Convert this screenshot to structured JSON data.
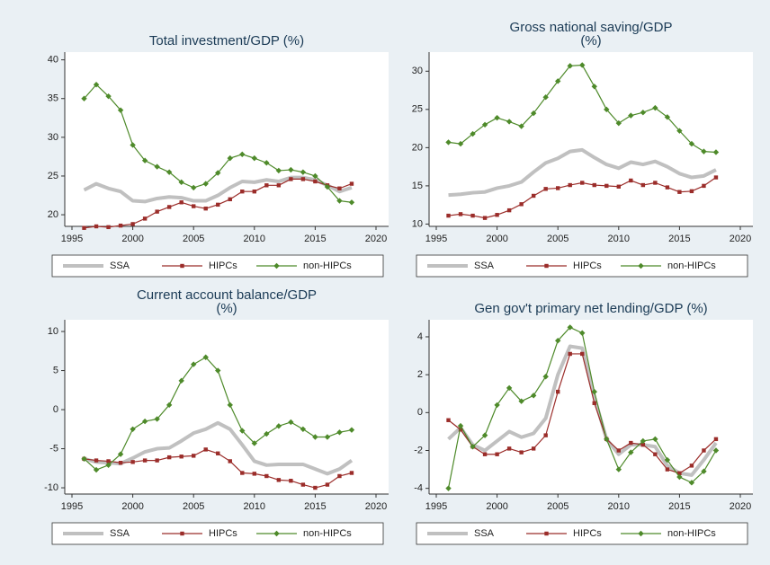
{
  "chart_data": [
    {
      "type": "line",
      "title": [
        "Total investment/GDP (%)"
      ],
      "x": [
        1996,
        1997,
        1998,
        1999,
        2000,
        2001,
        2002,
        2003,
        2004,
        2005,
        2006,
        2007,
        2008,
        2009,
        2010,
        2011,
        2012,
        2013,
        2014,
        2015,
        2016,
        2017,
        2018
      ],
      "xlim": [
        1995,
        2020
      ],
      "xticks": [
        1995,
        2000,
        2005,
        2010,
        2015,
        2020
      ],
      "ylim": [
        18.5,
        41
      ],
      "yticks": [
        20,
        25,
        30,
        35,
        40
      ],
      "grid": false,
      "legend": "bottom",
      "series": [
        {
          "name": "SSA",
          "color": "#c0c0c0",
          "values": [
            23.2,
            24,
            23.4,
            23,
            21.8,
            21.7,
            22.1,
            22.3,
            22.2,
            21.8,
            21.8,
            22.5,
            23.5,
            24.3,
            24.2,
            24.5,
            24.3,
            24.8,
            24.8,
            24.5,
            23.8,
            23,
            23.5
          ]
        },
        {
          "name": "HIPCs",
          "color": "#9b2d2a",
          "values": [
            18.3,
            18.5,
            18.4,
            18.6,
            18.8,
            19.5,
            20.4,
            21,
            21.6,
            21.1,
            20.8,
            21.3,
            22,
            23,
            23,
            23.8,
            23.8,
            24.6,
            24.6,
            24.3,
            23.8,
            23.4,
            24
          ]
        },
        {
          "name": "non-HIPCs",
          "color": "#4e8a2a",
          "values": [
            35,
            36.8,
            35.3,
            33.5,
            29,
            27,
            26.2,
            25.5,
            24.2,
            23.5,
            24,
            25.4,
            27.3,
            27.8,
            27.3,
            26.7,
            25.7,
            25.8,
            25.5,
            25,
            23.6,
            21.8,
            21.6
          ]
        }
      ]
    },
    {
      "type": "line",
      "title": [
        "Gross national saving/GDP",
        "(%)"
      ],
      "x": [
        1996,
        1997,
        1998,
        1999,
        2000,
        2001,
        2002,
        2003,
        2004,
        2005,
        2006,
        2007,
        2008,
        2009,
        2010,
        2011,
        2012,
        2013,
        2014,
        2015,
        2016,
        2017,
        2018
      ],
      "xlim": [
        1995,
        2020
      ],
      "xticks": [
        1995,
        2000,
        2005,
        2010,
        2015,
        2020
      ],
      "ylim": [
        9.7,
        32.5
      ],
      "yticks": [
        10,
        15,
        20,
        25,
        30
      ],
      "grid": false,
      "legend": "bottom",
      "series": [
        {
          "name": "SSA",
          "color": "#c0c0c0",
          "values": [
            13.8,
            13.9,
            14.1,
            14.2,
            14.7,
            15,
            15.5,
            16.8,
            18,
            18.6,
            19.5,
            19.7,
            18.7,
            17.8,
            17.3,
            18.1,
            17.8,
            18.2,
            17.5,
            16.6,
            16.1,
            16.3,
            17.1
          ]
        },
        {
          "name": "HIPCs",
          "color": "#9b2d2a",
          "values": [
            11.1,
            11.3,
            11.1,
            10.8,
            11.2,
            11.8,
            12.6,
            13.7,
            14.6,
            14.7,
            15.1,
            15.4,
            15.1,
            15,
            14.9,
            15.7,
            15.1,
            15.4,
            14.8,
            14.2,
            14.3,
            15,
            16.1
          ]
        },
        {
          "name": "non-HIPCs",
          "color": "#4e8a2a",
          "values": [
            20.7,
            20.5,
            21.8,
            23,
            23.9,
            23.4,
            22.8,
            24.5,
            26.6,
            28.7,
            30.7,
            30.8,
            28,
            25,
            23.2,
            24.2,
            24.6,
            25.2,
            24,
            22.2,
            20.5,
            19.5,
            19.4
          ]
        }
      ]
    },
    {
      "type": "line",
      "title": [
        "Current account balance/GDP",
        "(%)"
      ],
      "x": [
        1996,
        1997,
        1998,
        1999,
        2000,
        2001,
        2002,
        2003,
        2004,
        2005,
        2006,
        2007,
        2008,
        2009,
        2010,
        2011,
        2012,
        2013,
        2014,
        2015,
        2016,
        2017,
        2018
      ],
      "xlim": [
        1995,
        2020
      ],
      "xticks": [
        1995,
        2000,
        2005,
        2010,
        2015,
        2020
      ],
      "ylim": [
        -10.8,
        11.5
      ],
      "yticks": [
        -10,
        -5,
        0,
        5,
        10
      ],
      "grid": false,
      "legend": "bottom",
      "series": [
        {
          "name": "SSA",
          "color": "#c0c0c0",
          "values": [
            -6.3,
            -6.7,
            -6.8,
            -6.9,
            -6.2,
            -5.4,
            -5,
            -4.9,
            -4,
            -3,
            -2.5,
            -1.7,
            -2.5,
            -4.5,
            -6.6,
            -7.1,
            -7,
            -7,
            -7,
            -7.6,
            -8.2,
            -7.6,
            -6.5
          ]
        },
        {
          "name": "HIPCs",
          "color": "#9b2d2a",
          "values": [
            -6.3,
            -6.5,
            -6.6,
            -6.8,
            -6.7,
            -6.5,
            -6.5,
            -6.1,
            -6,
            -5.9,
            -5.1,
            -5.6,
            -6.6,
            -8.1,
            -8.2,
            -8.5,
            -9,
            -9.1,
            -9.6,
            -10,
            -9.6,
            -8.5,
            -8.1
          ]
        },
        {
          "name": "non-HIPCs",
          "color": "#4e8a2a",
          "values": [
            -6.3,
            -7.7,
            -7.1,
            -5.7,
            -2.5,
            -1.5,
            -1.2,
            0.6,
            3.7,
            5.8,
            6.7,
            5,
            0.6,
            -2.7,
            -4.3,
            -3.1,
            -2.1,
            -1.6,
            -2.5,
            -3.5,
            -3.5,
            -2.9,
            -2.6
          ]
        }
      ]
    },
    {
      "type": "line",
      "title": [
        "Gen gov't primary net lending/GDP (%)"
      ],
      "x": [
        1996,
        1997,
        1998,
        1999,
        2000,
        2001,
        2002,
        2003,
        2004,
        2005,
        2006,
        2007,
        2008,
        2009,
        2010,
        2011,
        2012,
        2013,
        2014,
        2015,
        2016,
        2017,
        2018
      ],
      "xlim": [
        1995,
        2020
      ],
      "xticks": [
        1995,
        2000,
        2005,
        2010,
        2015,
        2020
      ],
      "ylim": [
        -4.3,
        4.9
      ],
      "yticks": [
        -4,
        -2,
        0,
        2,
        4
      ],
      "grid": false,
      "legend": "bottom",
      "series": [
        {
          "name": "SSA",
          "color": "#c0c0c0",
          "values": [
            -1.4,
            -0.8,
            -1.7,
            -2,
            -1.5,
            -1,
            -1.3,
            -1.1,
            -0.3,
            2,
            3.5,
            3.4,
            0.8,
            -1.4,
            -2.2,
            -1.7,
            -1.7,
            -1.8,
            -2.8,
            -3.2,
            -3.3,
            -2.5,
            -1.6
          ]
        },
        {
          "name": "HIPCs",
          "color": "#9b2d2a",
          "values": [
            -0.4,
            -0.9,
            -1.8,
            -2.2,
            -2.2,
            -1.9,
            -2.1,
            -1.9,
            -1.2,
            1.1,
            3.1,
            3.1,
            0.5,
            -1.4,
            -2,
            -1.6,
            -1.7,
            -2.2,
            -3,
            -3.2,
            -2.8,
            -2,
            -1.4
          ]
        },
        {
          "name": "non-HIPCs",
          "color": "#4e8a2a",
          "values": [
            -4,
            -0.7,
            -1.8,
            -1.2,
            0.4,
            1.3,
            0.6,
            0.9,
            1.9,
            3.8,
            4.5,
            4.2,
            1.1,
            -1.4,
            -3,
            -2.1,
            -1.5,
            -1.4,
            -2.5,
            -3.4,
            -3.7,
            -3.1,
            -2
          ]
        }
      ]
    }
  ]
}
